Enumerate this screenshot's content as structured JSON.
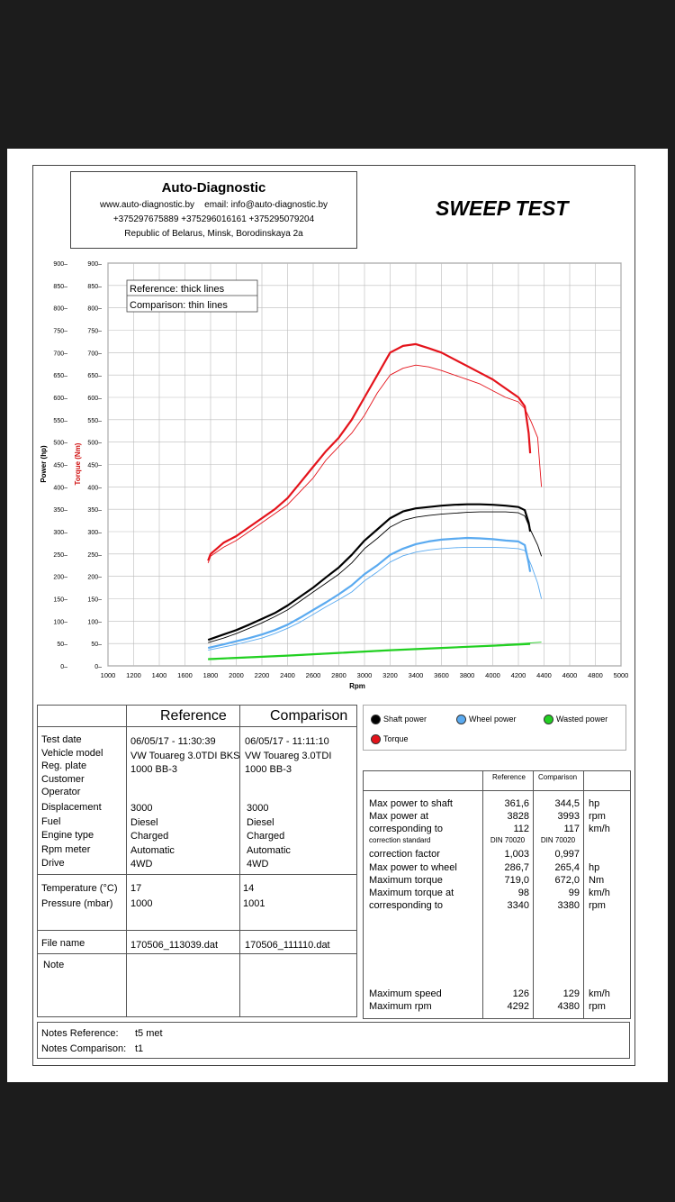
{
  "header": {
    "company": "Auto-Diagnostic",
    "web": "www.auto-diagnostic.by",
    "email": "email: info@auto-diagnostic.by",
    "phones": "+375297675889  +375296016161  +375295079204",
    "address": "Republic of Belarus, Minsk, Borodinskaya 2a"
  },
  "title": "SWEEP TEST",
  "chart_data": {
    "type": "line",
    "xlabel": "Rpm",
    "ylabel_left": "Power (hp)",
    "ylabel_right": "Torque (Nm)",
    "xlim": [
      1000,
      5000
    ],
    "ylim": [
      0,
      900
    ],
    "xticks": [
      1000,
      1200,
      1400,
      1600,
      1800,
      2000,
      2200,
      2400,
      2600,
      2800,
      3000,
      3200,
      3400,
      3600,
      3800,
      4000,
      4200,
      4400,
      4600,
      4800,
      5000
    ],
    "yticks": [
      0,
      50,
      100,
      150,
      200,
      250,
      300,
      350,
      400,
      450,
      500,
      550,
      600,
      650,
      700,
      750,
      800,
      850,
      900
    ],
    "grid": true,
    "legend_box": [
      "Reference: thick lines",
      "Comparison: thin lines"
    ],
    "series": [
      {
        "name": "Torque",
        "role": "reference",
        "color": "#e4131b",
        "x": [
          1780,
          1800,
          1900,
          2000,
          2100,
          2200,
          2300,
          2400,
          2500,
          2600,
          2700,
          2800,
          2900,
          3000,
          3100,
          3200,
          3300,
          3400,
          3500,
          3600,
          3700,
          3800,
          3900,
          4000,
          4100,
          4200,
          4250,
          4280,
          4292
        ],
        "y": [
          235,
          250,
          275,
          290,
          310,
          330,
          350,
          375,
          410,
          445,
          480,
          510,
          550,
          600,
          650,
          700,
          715,
          719,
          710,
          700,
          685,
          670,
          655,
          640,
          620,
          600,
          580,
          520,
          475
        ]
      },
      {
        "name": "Torque",
        "role": "comparison",
        "color": "#e4131b",
        "x": [
          1780,
          1800,
          1900,
          2000,
          2100,
          2200,
          2300,
          2400,
          2500,
          2600,
          2700,
          2800,
          2900,
          3000,
          3100,
          3200,
          3300,
          3400,
          3500,
          3600,
          3700,
          3800,
          3900,
          4000,
          4100,
          4200,
          4250,
          4300,
          4350,
          4380
        ],
        "y": [
          230,
          245,
          265,
          280,
          300,
          320,
          340,
          360,
          390,
          420,
          460,
          490,
          520,
          560,
          610,
          650,
          665,
          672,
          668,
          660,
          650,
          640,
          630,
          615,
          600,
          590,
          575,
          545,
          510,
          400
        ]
      },
      {
        "name": "Shaft power",
        "role": "reference",
        "color": "#000000",
        "x": [
          1780,
          1900,
          2000,
          2100,
          2200,
          2300,
          2400,
          2500,
          2600,
          2700,
          2800,
          2900,
          3000,
          3100,
          3200,
          3300,
          3400,
          3500,
          3600,
          3700,
          3800,
          3900,
          4000,
          4100,
          4200,
          4250,
          4280,
          4292
        ],
        "y": [
          58,
          70,
          80,
          92,
          105,
          118,
          135,
          155,
          175,
          198,
          220,
          248,
          280,
          305,
          330,
          345,
          352,
          355,
          358,
          360,
          361,
          361,
          360,
          358,
          355,
          348,
          320,
          300
        ]
      },
      {
        "name": "Shaft power",
        "role": "comparison",
        "color": "#000000",
        "x": [
          1780,
          1900,
          2000,
          2100,
          2200,
          2300,
          2400,
          2500,
          2600,
          2700,
          2800,
          2900,
          3000,
          3100,
          3200,
          3300,
          3400,
          3500,
          3600,
          3700,
          3800,
          3900,
          4000,
          4100,
          4200,
          4250,
          4300,
          4350,
          4380
        ],
        "y": [
          52,
          62,
          72,
          84,
          96,
          110,
          125,
          145,
          165,
          185,
          205,
          230,
          262,
          285,
          310,
          325,
          332,
          336,
          339,
          341,
          343,
          344,
          344,
          344,
          342,
          335,
          300,
          270,
          245
        ]
      },
      {
        "name": "Wheel power",
        "role": "reference",
        "color": "#5aaaf0",
        "x": [
          1780,
          1900,
          2000,
          2100,
          2200,
          2300,
          2400,
          2500,
          2600,
          2700,
          2800,
          2900,
          3000,
          3100,
          3200,
          3300,
          3400,
          3500,
          3600,
          3700,
          3800,
          3900,
          4000,
          4100,
          4200,
          4250,
          4280,
          4292
        ],
        "y": [
          40,
          48,
          55,
          62,
          70,
          80,
          92,
          108,
          125,
          142,
          160,
          180,
          205,
          225,
          248,
          262,
          272,
          278,
          282,
          284,
          286,
          285,
          283,
          280,
          278,
          270,
          230,
          210
        ]
      },
      {
        "name": "Wheel power",
        "role": "comparison",
        "color": "#5aaaf0",
        "x": [
          1780,
          1900,
          2000,
          2100,
          2200,
          2300,
          2400,
          2500,
          2600,
          2700,
          2800,
          2900,
          3000,
          3100,
          3200,
          3300,
          3400,
          3500,
          3600,
          3700,
          3800,
          3900,
          4000,
          4100,
          4200,
          4250,
          4300,
          4350,
          4380
        ],
        "y": [
          35,
          42,
          48,
          55,
          62,
          72,
          84,
          98,
          115,
          132,
          148,
          165,
          190,
          210,
          232,
          246,
          254,
          259,
          262,
          264,
          265,
          265,
          265,
          264,
          262,
          258,
          225,
          185,
          150
        ]
      },
      {
        "name": "Wasted power",
        "role": "reference",
        "color": "#22d022",
        "x": [
          1780,
          2000,
          2400,
          2800,
          3200,
          3600,
          4000,
          4292
        ],
        "y": [
          15,
          18,
          23,
          29,
          35,
          40,
          45,
          49
        ]
      },
      {
        "name": "Wasted power",
        "role": "comparison",
        "color": "#22d022",
        "x": [
          1780,
          2000,
          2400,
          2800,
          3200,
          3600,
          4000,
          4380
        ],
        "y": [
          14,
          17,
          22,
          28,
          34,
          40,
          46,
          53
        ]
      }
    ]
  },
  "legend": {
    "shaft": "Shaft power",
    "wheel": "Wheel power",
    "wasted": "Wasted power",
    "torque": "Torque"
  },
  "vehicle": {
    "col_ref": "Reference",
    "col_cmp": "Comparison",
    "labels": [
      "Test date",
      "Vehicle model",
      "Reg. plate",
      "Customer",
      "Operator"
    ],
    "ref": [
      "06/05/17 - 11:30:39",
      "VW Touareg 3.0TDI BKS",
      "1000 BB-3"
    ],
    "cmp": [
      "06/05/17 - 11:11:10",
      "VW Touareg 3.0TDI",
      "1000 BB-3"
    ],
    "labels2": [
      "Displacement",
      "Fuel",
      "Engine type",
      "Rpm meter",
      "Drive"
    ],
    "ref2": [
      "3000",
      "Diesel",
      "Charged",
      "Automatic",
      "4WD"
    ],
    "cmp2": [
      "3000",
      "Diesel",
      "Charged",
      "Automatic",
      "4WD"
    ],
    "labels3": [
      "Temperature (°C)",
      "Pressure (mbar)"
    ],
    "ref3": [
      "17",
      "1000"
    ],
    "cmp3": [
      "14",
      "1001"
    ],
    "file_label": "File name",
    "file_ref": "170506_113039.dat",
    "file_cmp": "170506_111110.dat",
    "note_label": "Note"
  },
  "notes": {
    "ref_label": "Notes Reference:",
    "ref": "t5 met",
    "cmp_label": "Notes Comparison:",
    "cmp": "t1"
  },
  "results": {
    "col_ref": "Reference",
    "col_cmp": "Comparison",
    "rows": [
      {
        "label": "Max power to shaft",
        "ref": "361,6",
        "cmp": "344,5",
        "unit": "hp"
      },
      {
        "label": "Max power at",
        "ref": "3828",
        "cmp": "3993",
        "unit": "rpm"
      },
      {
        "label": "corresponding to",
        "ref": "112",
        "cmp": "117",
        "unit": "km/h"
      },
      {
        "label": "correction standard",
        "ref": "DIN 70020",
        "cmp": "DIN 70020",
        "unit": "",
        "small": true
      },
      {
        "label": "correction factor",
        "ref": "1,003",
        "cmp": "0,997",
        "unit": ""
      },
      {
        "label": "Max power to wheel",
        "ref": "286,7",
        "cmp": "265,4",
        "unit": "hp"
      },
      {
        "label": "Maximum torque",
        "ref": "719,0",
        "cmp": "672,0",
        "unit": "Nm"
      },
      {
        "label": "Maximum torque at",
        "ref": "98",
        "cmp": "99",
        "unit": "km/h"
      },
      {
        "label": "corresponding to",
        "ref": "3340",
        "cmp": "3380",
        "unit": "rpm"
      }
    ],
    "speed_rows": [
      {
        "label": "Maximum speed",
        "ref": "126",
        "cmp": "129",
        "unit": "km/h"
      },
      {
        "label": "Maximum rpm",
        "ref": "4292",
        "cmp": "4380",
        "unit": "rpm"
      }
    ]
  }
}
